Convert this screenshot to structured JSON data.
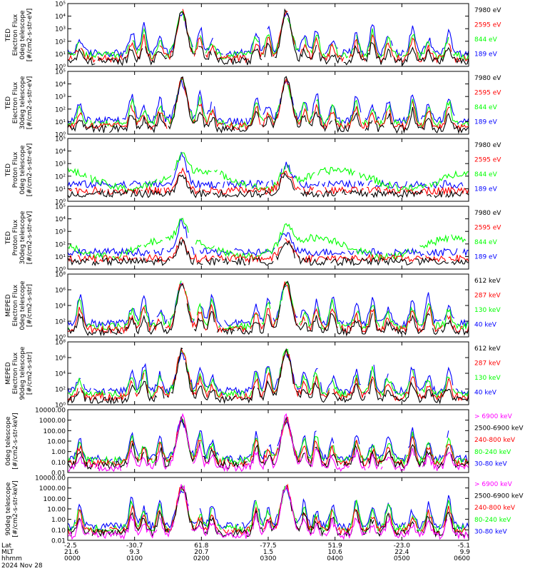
{
  "chart_data": {
    "type": "line",
    "date": "2024 Nov 28",
    "footer": {
      "row_labels": [
        "Lat",
        "MLT",
        "hhmm"
      ],
      "columns": [
        {
          "lat": "-2.5",
          "mlt": "21.6",
          "hhmm": "0000"
        },
        {
          "lat": "-30.7",
          "mlt": "9.3",
          "hhmm": "0100"
        },
        {
          "lat": "61.8",
          "mlt": "20.7",
          "hhmm": "0200"
        },
        {
          "lat": "-77.5",
          "mlt": "1.5",
          "hhmm": "0300"
        },
        {
          "lat": "51.9",
          "mlt": "10.6",
          "hhmm": "0400"
        },
        {
          "lat": "-23.0",
          "mlt": "22.4",
          "hhmm": "0500"
        },
        {
          "lat": "-5.1",
          "mlt": "9.9",
          "hhmm": "0600"
        }
      ]
    },
    "panels": [
      {
        "ylabel": [
          "TED",
          "Electron Flux",
          "0deg telescope",
          "[#/cm2-s-str-eV]"
        ],
        "scale": "log",
        "yticks": [
          "10⁰",
          "10¹",
          "10²",
          "10³",
          "10⁴",
          "10⁵"
        ],
        "series": [
          {
            "name": "7980 eV",
            "color": "#000000"
          },
          {
            "name": "2595 eV",
            "color": "#ff0000"
          },
          {
            "name": "844 eV",
            "color": "#00ff00"
          },
          {
            "name": "189 eV",
            "color": "#0000ff"
          }
        ]
      },
      {
        "ylabel": [
          "TED",
          "Electron Flux",
          "30deg telescope",
          "[#/cm2-s-str-eV]"
        ],
        "scale": "log",
        "yticks": [
          "10⁰",
          "10¹",
          "10²",
          "10³",
          "10⁴",
          "10⁵"
        ],
        "series": [
          {
            "name": "7980 eV",
            "color": "#000000"
          },
          {
            "name": "2595 eV",
            "color": "#ff0000"
          },
          {
            "name": "844 eV",
            "color": "#00ff00"
          },
          {
            "name": "189 eV",
            "color": "#0000ff"
          }
        ]
      },
      {
        "ylabel": [
          "TED",
          "Proton Flux",
          "0deg telescope",
          "[#/cm2-s-str-eV]"
        ],
        "scale": "log",
        "yticks": [
          "10⁰",
          "10¹",
          "10²",
          "10³",
          "10⁴",
          "10⁵"
        ],
        "series": [
          {
            "name": "7980 eV",
            "color": "#000000"
          },
          {
            "name": "2595 eV",
            "color": "#ff0000"
          },
          {
            "name": "844 eV",
            "color": "#00ff00"
          },
          {
            "name": "189 eV",
            "color": "#0000ff"
          }
        ]
      },
      {
        "ylabel": [
          "TED",
          "Proton Flux",
          "30deg telescope",
          "[#/cm2-s-str-eV]"
        ],
        "scale": "log",
        "yticks": [
          "10⁰",
          "10¹",
          "10²",
          "10³",
          "10⁴",
          "10⁵"
        ],
        "series": [
          {
            "name": "7980 eV",
            "color": "#000000"
          },
          {
            "name": "2595 eV",
            "color": "#ff0000"
          },
          {
            "name": "844 eV",
            "color": "#00ff00"
          },
          {
            "name": "189 eV",
            "color": "#0000ff"
          }
        ]
      },
      {
        "ylabel": [
          "MEPED",
          "Electron Flux",
          "0deg telescope",
          "[#/cm2-s-str]"
        ],
        "scale": "log",
        "yticks": [
          "10⁰",
          "10²",
          "10⁴",
          "10⁶",
          "10⁸"
        ],
        "series": [
          {
            "name": "612 keV",
            "color": "#000000"
          },
          {
            "name": "287 keV",
            "color": "#ff0000"
          },
          {
            "name": "130 keV",
            "color": "#00ff00"
          },
          {
            "name": "40 keV",
            "color": "#0000ff"
          }
        ]
      },
      {
        "ylabel": [
          "MEPED",
          "Electron Flux",
          "90deg telescope",
          "[#/cm2-s-str]"
        ],
        "scale": "log",
        "yticks": [
          "10⁰",
          "10²",
          "10⁴",
          "10⁶",
          "10⁸"
        ],
        "series": [
          {
            "name": "612 keV",
            "color": "#000000"
          },
          {
            "name": "287 keV",
            "color": "#ff0000"
          },
          {
            "name": "130 keV",
            "color": "#00ff00"
          },
          {
            "name": "40 keV",
            "color": "#0000ff"
          }
        ]
      },
      {
        "ylabel": [
          "0deg telescope",
          "[#/cm2-s-str-keV]"
        ],
        "scale": "log",
        "yticks": [
          "0.01",
          "0.10",
          "1.00",
          "10.00",
          "100.00",
          "1000.00",
          "10000.00"
        ],
        "series": [
          {
            "name": "> 6900 keV",
            "color": "#ff00ff"
          },
          {
            "name": "2500-6900 keV",
            "color": "#000000"
          },
          {
            "name": "240-800 keV",
            "color": "#ff0000"
          },
          {
            "name": "80-240 keV",
            "color": "#00ff00"
          },
          {
            "name": "30-80 keV",
            "color": "#0000ff"
          }
        ]
      },
      {
        "ylabel": [
          "90deg telescope",
          "[#/cm2-s-str-keV]"
        ],
        "scale": "log",
        "yticks": [
          "0.01",
          "0.10",
          "1.00",
          "10.00",
          "100.00",
          "1000.00",
          "10000.00"
        ],
        "series": [
          {
            "name": "> 6900 keV",
            "color": "#ff00ff"
          },
          {
            "name": "2500-6900 keV",
            "color": "#000000"
          },
          {
            "name": "240-800 keV",
            "color": "#ff0000"
          },
          {
            "name": "80-240 keV",
            "color": "#00ff00"
          },
          {
            "name": "30-80 keV",
            "color": "#0000ff"
          }
        ]
      }
    ]
  }
}
